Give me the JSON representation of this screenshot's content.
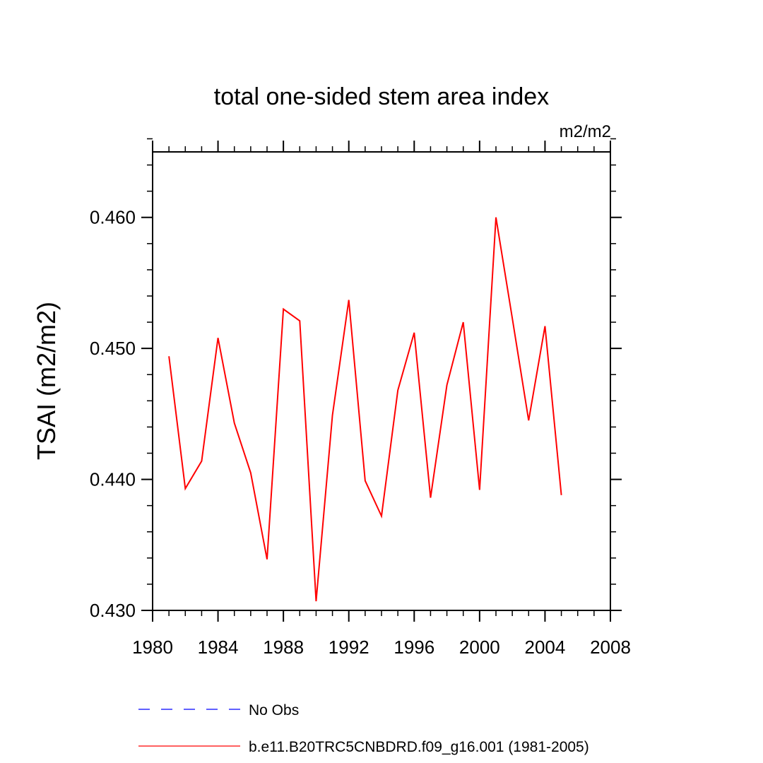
{
  "chart_data": {
    "type": "line",
    "title": "total one-sided stem area index",
    "units_label": "m2/m2",
    "ylabel": "TSAI  (m2/m2)",
    "xlabel": "",
    "xlim": [
      1980,
      2008
    ],
    "ylim": [
      0.43,
      0.465
    ],
    "x_ticks": [
      1980,
      1984,
      1988,
      1992,
      1996,
      2000,
      2004,
      2008
    ],
    "x_tick_labels": [
      "1980",
      "1984",
      "1988",
      "1992",
      "1996",
      "2000",
      "2004",
      "2008"
    ],
    "y_ticks": [
      0.43,
      0.44,
      0.45,
      0.46
    ],
    "y_tick_labels": [
      "0.430",
      "0.440",
      "0.450",
      "0.460"
    ],
    "y_minor_step": 0.002,
    "x_minor_step": 1,
    "grid": false,
    "series": [
      {
        "name": "b.e11.B20TRC5CNBDRD.f09_g16.001 (1981-2005)",
        "color": "#ff0000",
        "style": "solid",
        "x": [
          1981,
          1982,
          1983,
          1984,
          1985,
          1986,
          1987,
          1988,
          1989,
          1990,
          1991,
          1992,
          1993,
          1994,
          1995,
          1996,
          1997,
          1998,
          1999,
          2000,
          2001,
          2002,
          2003,
          2004,
          2005
        ],
        "values": [
          0.4494,
          0.4393,
          0.4414,
          0.4508,
          0.4443,
          0.4405,
          0.4339,
          0.453,
          0.4521,
          0.4307,
          0.4449,
          0.4537,
          0.4399,
          0.4372,
          0.4468,
          0.4512,
          0.4386,
          0.4472,
          0.452,
          0.4392,
          0.46,
          0.4523,
          0.4445,
          0.4517,
          0.4388
        ]
      }
    ],
    "legend": {
      "placement": "bottom",
      "entries": [
        {
          "label": "No Obs",
          "color": "#0000ff",
          "style": "dashed"
        },
        {
          "label": "b.e11.B20TRC5CNBDRD.f09_g16.001 (1981-2005)",
          "color": "#ff0000",
          "style": "solid"
        }
      ]
    }
  }
}
